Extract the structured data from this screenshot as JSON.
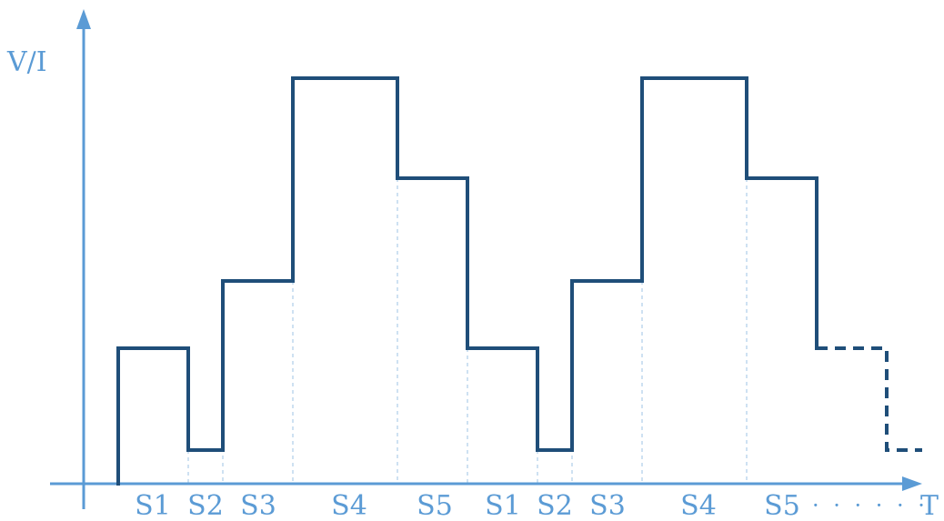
{
  "diagram": {
    "y_axis_label": "V/I",
    "x_axis_label": "T",
    "continuation_dots": "· · · · · ·",
    "segment_labels": [
      "S1",
      "S2",
      "S3",
      "S4",
      "S5",
      "S1",
      "S2",
      "S3",
      "S4",
      "S5"
    ],
    "colors": {
      "axis": "#5b9bd5",
      "waveform": "#1f4e79",
      "guides": "#9dc3e6"
    }
  }
}
